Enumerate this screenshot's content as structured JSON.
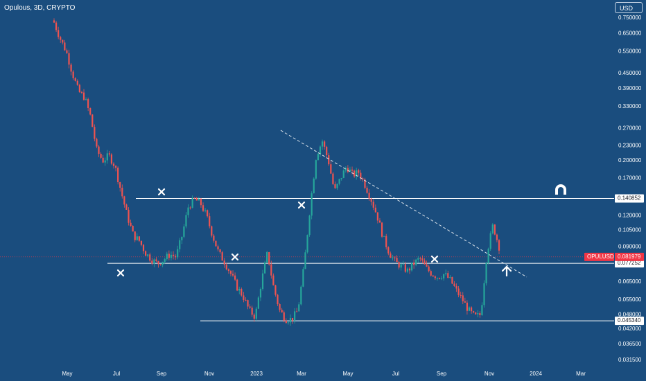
{
  "header": {
    "title": "Opulous, 3D, CRYPTO"
  },
  "currency_button": {
    "label": "USD"
  },
  "colors": {
    "background": "#1a4d7e",
    "up_candle": "#26a69a",
    "down_candle": "#ef5350",
    "level_line": "#ffffff",
    "price_badge": "#f23645",
    "axis_text": "#ffffff"
  },
  "chart_data": {
    "type": "candlestick",
    "symbol": "OPULUSD",
    "interval": "3D",
    "y_scale": "log",
    "ylim": [
      0.0295,
      0.79
    ],
    "x_axis_ticks": [
      "May",
      "Jul",
      "Sep",
      "Nov",
      "2023",
      "Mar",
      "May",
      "Jul",
      "Sep",
      "Nov",
      "2024",
      "Mar"
    ],
    "y_axis_ticks": [
      "0.750000",
      "0.650000",
      "0.550000",
      "0.450000",
      "0.390000",
      "0.330000",
      "0.270000",
      "0.230000",
      "0.200000",
      "0.170000",
      "0.120000",
      "0.105000",
      "0.090000",
      "0.065000",
      "0.055000",
      "0.048000",
      "0.042000",
      "0.036500",
      "0.031500"
    ],
    "price_series_close": [
      0.72,
      0.62,
      0.55,
      0.45,
      0.38,
      0.36,
      0.3,
      0.22,
      0.2,
      0.21,
      0.19,
      0.15,
      0.12,
      0.1,
      0.095,
      0.085,
      0.08,
      0.077,
      0.08,
      0.084,
      0.082,
      0.1,
      0.13,
      0.14,
      0.135,
      0.12,
      0.1,
      0.085,
      0.078,
      0.07,
      0.062,
      0.057,
      0.05,
      0.047,
      0.065,
      0.085,
      0.062,
      0.05,
      0.046,
      0.046,
      0.05,
      0.075,
      0.13,
      0.21,
      0.24,
      0.2,
      0.15,
      0.17,
      0.19,
      0.175,
      0.18,
      0.16,
      0.14,
      0.12,
      0.098,
      0.085,
      0.078,
      0.075,
      0.072,
      0.077,
      0.081,
      0.074,
      0.07,
      0.068,
      0.07,
      0.066,
      0.06,
      0.055,
      0.05,
      0.047,
      0.048,
      0.085,
      0.11,
      0.09
    ],
    "price_levels": [
      {
        "label": "0.140852",
        "value": 0.140852
      },
      {
        "label": "0.077252",
        "value": 0.077252
      },
      {
        "label": "0.045340",
        "value": 0.04534
      }
    ],
    "last_price": {
      "symbol": "OPULUSD",
      "label": "0.081979",
      "value": 0.081979
    },
    "trendline": {
      "style": "dashed",
      "from": {
        "x_label": "Jan 2023",
        "y": 0.265
      },
      "to": {
        "x_label": "Dec 2023",
        "y": 0.068
      }
    },
    "annotations": [
      {
        "type": "cross-marker",
        "near": "Jul 2022 low"
      },
      {
        "type": "cross-marker",
        "near": "Sep 2022 high"
      },
      {
        "type": "cross-marker",
        "near": "Dec 2022 high"
      },
      {
        "type": "cross-marker",
        "near": "Mar 2023 low"
      },
      {
        "type": "cross-marker",
        "near": "Aug 2023 high"
      },
      {
        "type": "magnet-icon"
      },
      {
        "type": "arrow-up-marker"
      }
    ]
  }
}
